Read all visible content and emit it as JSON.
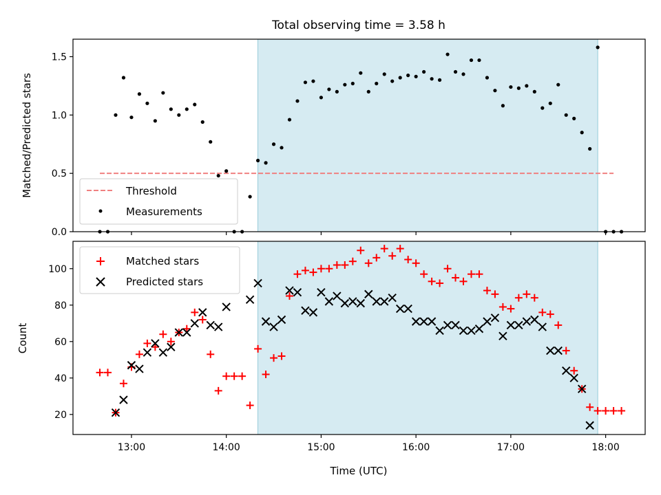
{
  "chart_data": [
    {
      "type": "scatter",
      "title": "Total observing time = 3.58 h",
      "xlabel": "",
      "ylabel": "Matched/Predicted stars",
      "xlim": [
        "12:23",
        "18:25"
      ],
      "ylim": [
        0,
        1.65
      ],
      "yticks": [
        "0.0",
        "0.5",
        "1.0",
        "1.5"
      ],
      "grid": false,
      "legend_position": "lower-left",
      "observing_window": {
        "start": "14:20",
        "end": "17:55",
        "color": "#add8e6"
      },
      "threshold": {
        "name": "Threshold",
        "value": 0.5,
        "x_range": [
          "12:40",
          "18:05"
        ],
        "color": "#f08080",
        "style": "dashed"
      },
      "series": [
        {
          "name": "Measurements",
          "color": "#000000",
          "marker": "dot",
          "x": [
            "12:40",
            "12:45",
            "12:50",
            "12:55",
            "13:00",
            "13:05",
            "13:10",
            "13:15",
            "13:20",
            "13:25",
            "13:30",
            "13:35",
            "13:40",
            "13:45",
            "13:50",
            "13:55",
            "14:00",
            "14:05",
            "14:10",
            "14:15",
            "14:20",
            "14:25",
            "14:30",
            "14:35",
            "14:40",
            "14:45",
            "14:50",
            "14:55",
            "15:00",
            "15:05",
            "15:10",
            "15:15",
            "15:20",
            "15:25",
            "15:30",
            "15:35",
            "15:40",
            "15:45",
            "15:50",
            "15:55",
            "16:00",
            "16:05",
            "16:10",
            "16:15",
            "16:20",
            "16:25",
            "16:30",
            "16:35",
            "16:40",
            "16:45",
            "16:50",
            "16:55",
            "17:00",
            "17:05",
            "17:10",
            "17:15",
            "17:20",
            "17:25",
            "17:30",
            "17:35",
            "17:40",
            "17:45",
            "17:50",
            "17:55",
            "18:00",
            "18:05",
            "18:10"
          ],
          "values": [
            0.0,
            0.0,
            1.0,
            1.32,
            0.98,
            1.18,
            1.1,
            0.95,
            1.19,
            1.05,
            1.0,
            1.05,
            1.09,
            0.94,
            0.77,
            0.48,
            0.52,
            0.0,
            0.0,
            0.3,
            0.61,
            0.59,
            0.75,
            0.72,
            0.96,
            1.12,
            1.28,
            1.29,
            1.15,
            1.22,
            1.2,
            1.26,
            1.27,
            1.36,
            1.2,
            1.27,
            1.35,
            1.29,
            1.32,
            1.34,
            1.33,
            1.37,
            1.31,
            1.3,
            1.52,
            1.37,
            1.35,
            1.47,
            1.47,
            1.32,
            1.21,
            1.08,
            1.24,
            1.23,
            1.25,
            1.2,
            1.06,
            1.1,
            1.26,
            1.0,
            0.97,
            0.85,
            0.71,
            1.58,
            0.0,
            0.0,
            0.0
          ]
        }
      ]
    },
    {
      "type": "scatter",
      "title": "",
      "xlabel": "Time (UTC)",
      "ylabel": "Count",
      "xlim": [
        "12:23",
        "18:25"
      ],
      "ylim": [
        9,
        115
      ],
      "xticks": [
        "13:00",
        "14:00",
        "15:00",
        "16:00",
        "17:00",
        "18:00"
      ],
      "yticks": [
        "20",
        "40",
        "60",
        "80",
        "100"
      ],
      "grid": false,
      "legend_position": "upper-left",
      "observing_window": {
        "start": "14:20",
        "end": "17:55",
        "color": "#add8e6"
      },
      "series": [
        {
          "name": "Matched stars",
          "color": "#ff0000",
          "marker": "plus",
          "x": [
            "12:40",
            "12:45",
            "12:50",
            "12:55",
            "13:00",
            "13:05",
            "13:10",
            "13:15",
            "13:20",
            "13:25",
            "13:30",
            "13:35",
            "13:40",
            "13:45",
            "13:50",
            "13:55",
            "14:00",
            "14:05",
            "14:10",
            "14:15",
            "14:20",
            "14:25",
            "14:30",
            "14:35",
            "14:40",
            "14:45",
            "14:50",
            "14:55",
            "15:00",
            "15:05",
            "15:10",
            "15:15",
            "15:20",
            "15:25",
            "15:30",
            "15:35",
            "15:40",
            "15:45",
            "15:50",
            "15:55",
            "16:00",
            "16:05",
            "16:10",
            "16:15",
            "16:20",
            "16:25",
            "16:30",
            "16:35",
            "16:40",
            "16:45",
            "16:50",
            "16:55",
            "17:00",
            "17:05",
            "17:10",
            "17:15",
            "17:20",
            "17:25",
            "17:30",
            "17:35",
            "17:40",
            "17:45",
            "17:50",
            "17:55",
            "18:00",
            "18:05",
            "18:10"
          ],
          "values": [
            43,
            43,
            21,
            37,
            46,
            53,
            59,
            57,
            64,
            60,
            65,
            67,
            76,
            72,
            53,
            33,
            41,
            41,
            41,
            25,
            56,
            42,
            51,
            52,
            85,
            97,
            99,
            98,
            100,
            100,
            102,
            102,
            104,
            110,
            103,
            106,
            111,
            107,
            111,
            105,
            103,
            97,
            93,
            92,
            100,
            95,
            93,
            97,
            97,
            88,
            86,
            79,
            78,
            84,
            86,
            84,
            76,
            75,
            69,
            55,
            44,
            34,
            24,
            22,
            22,
            22,
            22
          ]
        },
        {
          "name": "Predicted stars",
          "color": "#000000",
          "marker": "x",
          "x": [
            "12:50",
            "12:55",
            "13:00",
            "13:05",
            "13:10",
            "13:15",
            "13:20",
            "13:25",
            "13:30",
            "13:35",
            "13:40",
            "13:45",
            "13:50",
            "13:55",
            "14:00",
            "14:15",
            "14:20",
            "14:25",
            "14:30",
            "14:35",
            "14:40",
            "14:45",
            "14:50",
            "14:55",
            "15:00",
            "15:05",
            "15:10",
            "15:15",
            "15:20",
            "15:25",
            "15:30",
            "15:35",
            "15:40",
            "15:45",
            "15:50",
            "15:55",
            "16:00",
            "16:05",
            "16:10",
            "16:15",
            "16:20",
            "16:25",
            "16:30",
            "16:35",
            "16:40",
            "16:45",
            "16:50",
            "16:55",
            "17:00",
            "17:05",
            "17:10",
            "17:15",
            "17:20",
            "17:25",
            "17:30",
            "17:35",
            "17:40",
            "17:45",
            "17:50",
            "17:55"
          ],
          "values": [
            21,
            28,
            47,
            45,
            54,
            59,
            54,
            57,
            65,
            65,
            70,
            76,
            69,
            68,
            79,
            83,
            92,
            71,
            68,
            72,
            88,
            87,
            77,
            76,
            87,
            82,
            85,
            81,
            82,
            81,
            86,
            82,
            82,
            84,
            78,
            78,
            71,
            71,
            71,
            66,
            69,
            69,
            66,
            66,
            67,
            71,
            73,
            63,
            69,
            69,
            71,
            72,
            68,
            55,
            55,
            44,
            40,
            34,
            14,
            null
          ]
        }
      ]
    }
  ]
}
